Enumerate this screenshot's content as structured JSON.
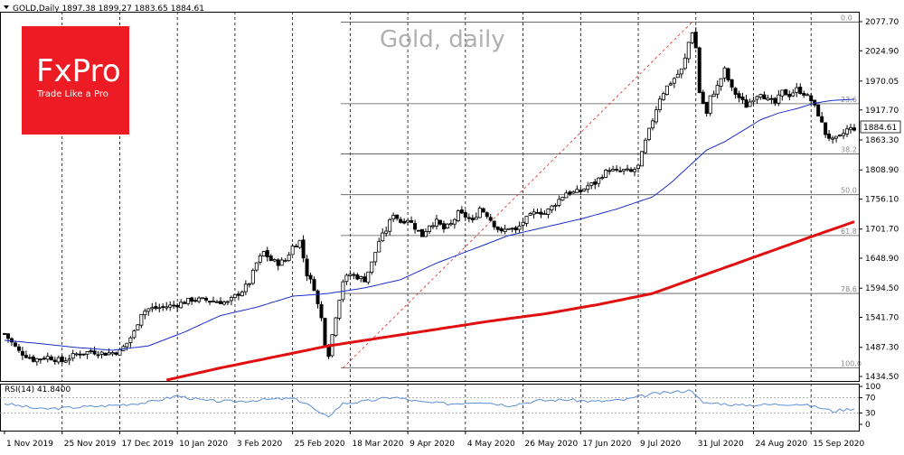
{
  "header": {
    "symbol_line": "GOLD,Daily  1897.38 1899.27 1883.65 1884.61"
  },
  "watermark_title": "Gold, daily",
  "logo": {
    "brand": "FxPro",
    "tagline": "Trade Like a Pro",
    "color": "#ed1c24"
  },
  "current_price": "1884.61",
  "colors": {
    "candle": "#000000",
    "ma_short": "#1a2ec8",
    "ma_long": "#e01010",
    "fib_line": "#e02020",
    "rsi_line": "#5b8fd6",
    "grid": "#000000",
    "price_tag_bg": "#ffffff"
  },
  "chart_data": [
    {
      "type": "candlestick",
      "title": "Gold, daily",
      "ylim": [
        1420,
        2100
      ],
      "y_ticks": [
        "2077.70",
        "2024.90",
        "1970.05",
        "1917.70",
        "1863.30",
        "1808.90",
        "1756.10",
        "1701.70",
        "1648.90",
        "1594.50",
        "1541.70",
        "1487.30",
        "1434.50"
      ],
      "y_tick_values": [
        2077.7,
        2024.9,
        1970.05,
        1917.7,
        1863.3,
        1808.9,
        1756.1,
        1701.7,
        1648.9,
        1594.5,
        1541.7,
        1487.3,
        1434.5
      ],
      "x_tick_labels": [
        "1 Nov 2019",
        "25 Nov 2019",
        "17 Dec 2019",
        "10 Jan 2020",
        "3 Feb 2020",
        "25 Feb 2020",
        "18 Mar 2020",
        "9 Apr 2020",
        "4 May 2020",
        "26 May 2020",
        "17 Jun 2020",
        "9 Jul 2020",
        "31 Jul 2020",
        "24 Aug 2020",
        "15 Sep 2020"
      ],
      "x_tick_index": [
        0,
        16,
        32,
        48,
        64,
        80,
        96,
        112,
        128,
        144,
        160,
        176,
        192,
        208,
        224
      ],
      "close_keypoints": [
        [
          0,
          1512
        ],
        [
          4,
          1480
        ],
        [
          8,
          1465
        ],
        [
          12,
          1470
        ],
        [
          16,
          1462
        ],
        [
          20,
          1475
        ],
        [
          24,
          1480
        ],
        [
          28,
          1476
        ],
        [
          32,
          1480
        ],
        [
          34,
          1495
        ],
        [
          36,
          1515
        ],
        [
          38,
          1550
        ],
        [
          40,
          1557
        ],
        [
          44,
          1560
        ],
        [
          48,
          1565
        ],
        [
          52,
          1574
        ],
        [
          56,
          1573
        ],
        [
          60,
          1570
        ],
        [
          62,
          1568
        ],
        [
          64,
          1580
        ],
        [
          66,
          1590
        ],
        [
          68,
          1605
        ],
        [
          70,
          1640
        ],
        [
          72,
          1660
        ],
        [
          74,
          1645
        ],
        [
          76,
          1640
        ],
        [
          78,
          1645
        ],
        [
          80,
          1670
        ],
        [
          82,
          1680
        ],
        [
          83,
          1650
        ],
        [
          84,
          1620
        ],
        [
          86,
          1595
        ],
        [
          87,
          1565
        ],
        [
          88,
          1540
        ],
        [
          89,
          1495
        ],
        [
          90,
          1475
        ],
        [
          91,
          1510
        ],
        [
          92,
          1545
        ],
        [
          94,
          1608
        ],
        [
          96,
          1620
        ],
        [
          98,
          1615
        ],
        [
          100,
          1610
        ],
        [
          102,
          1640
        ],
        [
          104,
          1680
        ],
        [
          106,
          1700
        ],
        [
          108,
          1730
        ],
        [
          110,
          1715
        ],
        [
          112,
          1720
        ],
        [
          114,
          1705
        ],
        [
          116,
          1690
        ],
        [
          118,
          1710
        ],
        [
          120,
          1715
        ],
        [
          122,
          1702
        ],
        [
          124,
          1710
        ],
        [
          126,
          1730
        ],
        [
          128,
          1725
        ],
        [
          130,
          1715
        ],
        [
          132,
          1740
        ],
        [
          134,
          1728
        ],
        [
          136,
          1710
        ],
        [
          138,
          1695
        ],
        [
          140,
          1705
        ],
        [
          142,
          1698
        ],
        [
          144,
          1715
        ],
        [
          146,
          1725
        ],
        [
          148,
          1735
        ],
        [
          150,
          1730
        ],
        [
          152,
          1742
        ],
        [
          154,
          1755
        ],
        [
          156,
          1768
        ],
        [
          158,
          1768
        ],
        [
          160,
          1770
        ],
        [
          162,
          1780
        ],
        [
          164,
          1785
        ],
        [
          166,
          1800
        ],
        [
          168,
          1810
        ],
        [
          170,
          1805
        ],
        [
          172,
          1808
        ],
        [
          174,
          1805
        ],
        [
          176,
          1815
        ],
        [
          178,
          1860
        ],
        [
          180,
          1900
        ],
        [
          182,
          1940
        ],
        [
          184,
          1960
        ],
        [
          186,
          1975
        ],
        [
          188,
          1990
        ],
        [
          189,
          2010
        ],
        [
          190,
          2040
        ],
        [
          191,
          2060
        ],
        [
          192,
          2030
        ],
        [
          193,
          1950
        ],
        [
          194,
          1930
        ],
        [
          195,
          1910
        ],
        [
          196,
          1940
        ],
        [
          198,
          1960
        ],
        [
          200,
          1990
        ],
        [
          202,
          1955
        ],
        [
          204,
          1940
        ],
        [
          206,
          1925
        ],
        [
          208,
          1940
        ],
        [
          210,
          1950
        ],
        [
          212,
          1935
        ],
        [
          214,
          1930
        ],
        [
          216,
          1950
        ],
        [
          218,
          1945
        ],
        [
          220,
          1955
        ],
        [
          222,
          1948
        ],
        [
          224,
          1935
        ],
        [
          226,
          1910
        ],
        [
          228,
          1875
        ],
        [
          230,
          1862
        ],
        [
          232,
          1868
        ],
        [
          234,
          1882
        ],
        [
          236,
          1884.61
        ]
      ],
      "total_bars": 237,
      "fib_levels": [
        {
          "label": "0.0",
          "value": 2077
        },
        {
          "label": "23.6",
          "value": 1929
        },
        {
          "label": "38.2",
          "value": 1838
        },
        {
          "label": "50.0",
          "value": 1764
        },
        {
          "label": "61.8",
          "value": 1690
        },
        {
          "label": "78.6",
          "value": 1585
        },
        {
          "label": "100.0",
          "value": 1450
        }
      ],
      "fib_line": {
        "from": [
          94,
          1450
        ],
        "to": [
          191,
          2077
        ]
      },
      "ma_short_keypoints": [
        [
          0,
          1500
        ],
        [
          10,
          1494
        ],
        [
          20,
          1487
        ],
        [
          30,
          1482
        ],
        [
          40,
          1490
        ],
        [
          50,
          1515
        ],
        [
          60,
          1545
        ],
        [
          70,
          1560
        ],
        [
          80,
          1580
        ],
        [
          90,
          1585
        ],
        [
          100,
          1595
        ],
        [
          110,
          1610
        ],
        [
          120,
          1640
        ],
        [
          130,
          1665
        ],
        [
          140,
          1690
        ],
        [
          150,
          1705
        ],
        [
          160,
          1720
        ],
        [
          170,
          1738
        ],
        [
          180,
          1760
        ],
        [
          185,
          1785
        ],
        [
          190,
          1815
        ],
        [
          195,
          1845
        ],
        [
          200,
          1860
        ],
        [
          205,
          1880
        ],
        [
          210,
          1900
        ],
        [
          215,
          1912
        ],
        [
          220,
          1920
        ],
        [
          225,
          1930
        ],
        [
          230,
          1935
        ],
        [
          236,
          1937
        ]
      ],
      "ma_long_keypoints": [
        [
          45,
          1428
        ],
        [
          60,
          1450
        ],
        [
          75,
          1470
        ],
        [
          90,
          1490
        ],
        [
          105,
          1505
        ],
        [
          120,
          1520
        ],
        [
          135,
          1535
        ],
        [
          150,
          1548
        ],
        [
          165,
          1565
        ],
        [
          180,
          1585
        ],
        [
          195,
          1620
        ],
        [
          210,
          1655
        ],
        [
          225,
          1690
        ],
        [
          236,
          1715
        ]
      ]
    },
    {
      "type": "line",
      "title": "RSI(14) 41.8400",
      "ylim": [
        0,
        100
      ],
      "y_ticks": [
        "100",
        "70",
        "30",
        "0"
      ],
      "y_tick_values": [
        100,
        70,
        30,
        0
      ],
      "levels": [
        70,
        30
      ],
      "keypoints": [
        [
          0,
          55
        ],
        [
          10,
          40
        ],
        [
          20,
          45
        ],
        [
          30,
          50
        ],
        [
          40,
          58
        ],
        [
          48,
          75
        ],
        [
          56,
          62
        ],
        [
          64,
          60
        ],
        [
          72,
          65
        ],
        [
          80,
          68
        ],
        [
          84,
          55
        ],
        [
          88,
          25
        ],
        [
          90,
          22
        ],
        [
          94,
          55
        ],
        [
          100,
          60
        ],
        [
          108,
          72
        ],
        [
          116,
          58
        ],
        [
          124,
          54
        ],
        [
          132,
          60
        ],
        [
          140,
          50
        ],
        [
          148,
          62
        ],
        [
          156,
          65
        ],
        [
          164,
          60
        ],
        [
          172,
          64
        ],
        [
          180,
          80
        ],
        [
          186,
          85
        ],
        [
          191,
          90
        ],
        [
          194,
          55
        ],
        [
          198,
          56
        ],
        [
          204,
          50
        ],
        [
          212,
          52
        ],
        [
          220,
          54
        ],
        [
          226,
          45
        ],
        [
          230,
          35
        ],
        [
          236,
          41.84
        ]
      ]
    }
  ]
}
